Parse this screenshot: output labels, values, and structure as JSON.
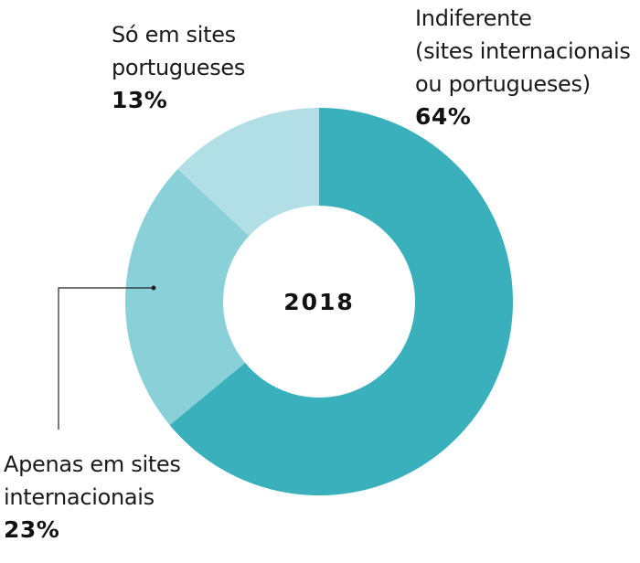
{
  "chart_data": {
    "type": "pie",
    "donut": true,
    "center_label": "2018",
    "slices": [
      {
        "label_lines": [
          "Indiferente",
          "(sites internacionais",
          "ou portugueses)"
        ],
        "value": 64,
        "value_label": "64%",
        "color": "#3ab0bd"
      },
      {
        "label_lines": [
          "Apenas em sites",
          "internacionais"
        ],
        "value": 23,
        "value_label": "23%",
        "color": "#8ad0d8"
      },
      {
        "label_lines": [
          "Só em sites",
          "portugueses"
        ],
        "value": 13,
        "value_label": "13%",
        "color": "#b1dfe5"
      }
    ],
    "leader_line_color": "#222222"
  }
}
